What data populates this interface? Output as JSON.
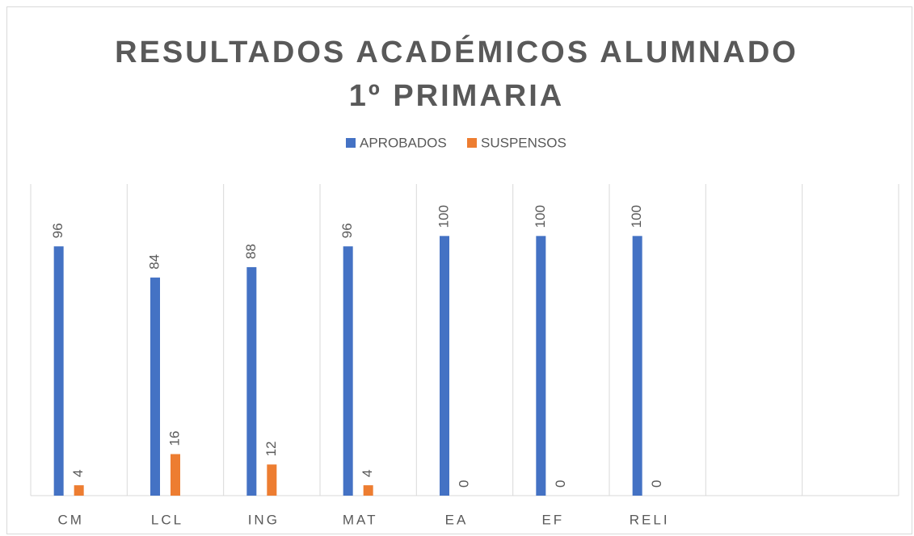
{
  "chart_data": {
    "type": "bar",
    "title": "RESULTADOS ACADÉMICOS ALUMNADO 1º PRIMARIA",
    "categories": [
      "CM",
      "LCL",
      "ING",
      "MAT",
      "EA",
      "EF",
      "RELI",
      null,
      null
    ],
    "series": [
      {
        "name": "APROBADOS",
        "color": "#4472c4",
        "values": [
          96,
          84,
          88,
          96,
          100,
          100,
          100,
          null,
          null
        ]
      },
      {
        "name": "SUSPENSOS",
        "color": "#ed7d31",
        "values": [
          4,
          16,
          12,
          4,
          0,
          0,
          0,
          null,
          null
        ]
      }
    ],
    "ylim": [
      0,
      120
    ],
    "legend": "top",
    "grid": true
  }
}
